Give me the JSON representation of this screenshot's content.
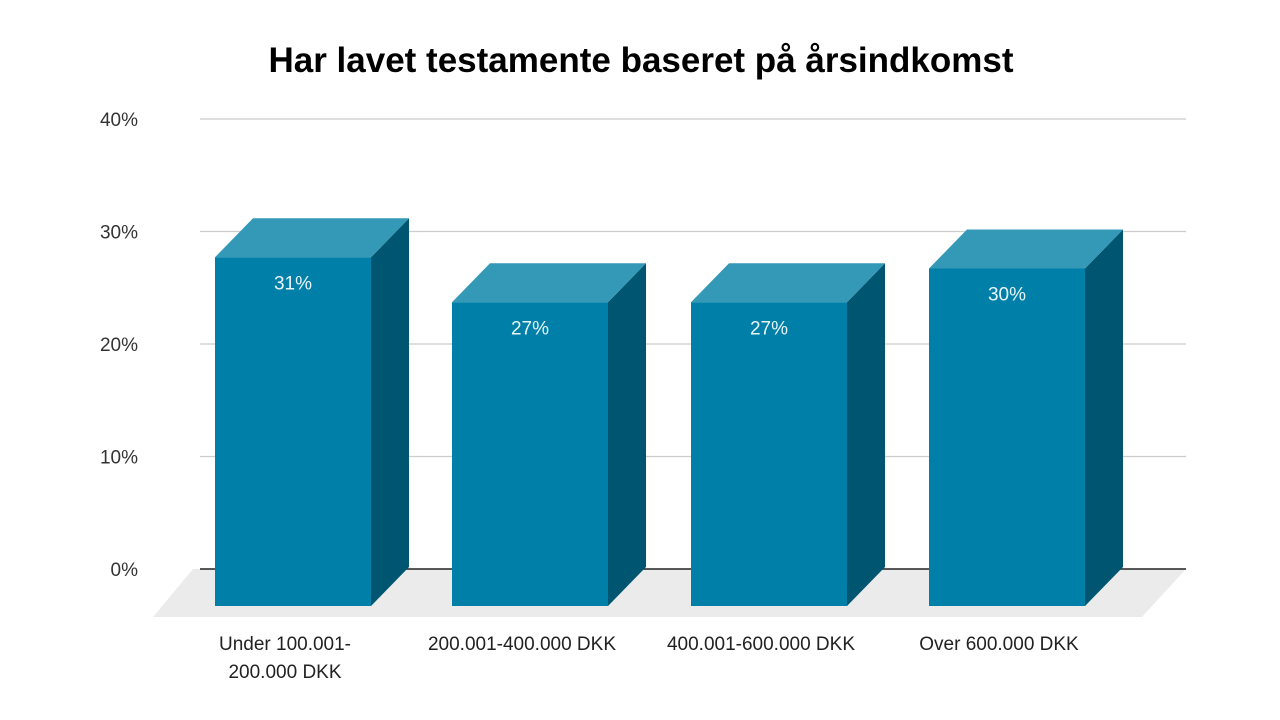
{
  "chart_data": {
    "type": "bar",
    "style": "3d",
    "title": "Har lavet testamente baseret på årsindkomst",
    "xlabel": "",
    "ylabel": "",
    "ylim": [
      0,
      40
    ],
    "yticks": [
      "0%",
      "10%",
      "20%",
      "30%",
      "40%"
    ],
    "grid": true,
    "categories": [
      [
        "Under 100.001-",
        "200.000 DKK"
      ],
      [
        "200.001-400.000 DKK"
      ],
      [
        "400.001-600.000 DKK"
      ],
      [
        "Over 600.000 DKK"
      ]
    ],
    "values": [
      31,
      27,
      27,
      30
    ],
    "data_labels": [
      "31%",
      "27%",
      "27%",
      "30%"
    ],
    "colors": {
      "front": "#0080a8",
      "top": "#3399b7",
      "side": "#005570",
      "floor": "#ebebeb",
      "grid": "#cccccc"
    }
  }
}
